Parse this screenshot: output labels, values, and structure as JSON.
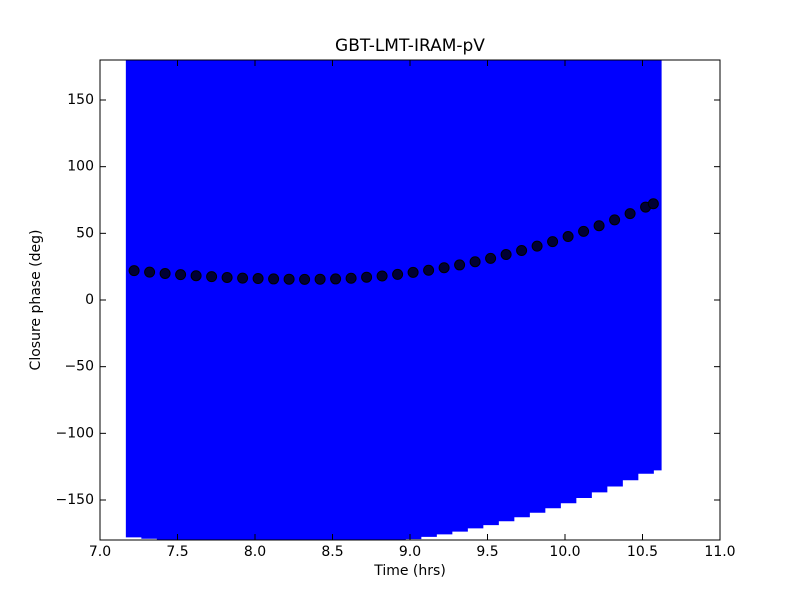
{
  "chart_data": {
    "type": "errorbar",
    "title": "GBT-LMT-IRAM-pV",
    "xlabel": "Time (hrs)",
    "ylabel": "Closure phase (deg)",
    "x": [
      7.22,
      7.32,
      7.42,
      7.52,
      7.62,
      7.72,
      7.82,
      7.92,
      8.02,
      8.12,
      8.22,
      8.32,
      8.42,
      8.52,
      8.62,
      8.72,
      8.82,
      8.92,
      9.02,
      9.12,
      9.22,
      9.32,
      9.42,
      9.52,
      9.62,
      9.72,
      9.82,
      9.92,
      10.02,
      10.12,
      10.22,
      10.32,
      10.42,
      10.52,
      10.57
    ],
    "values": [
      22.0,
      20.9,
      19.9,
      19.0,
      18.2,
      17.5,
      16.9,
      16.4,
      16.1,
      15.8,
      15.6,
      15.5,
      15.6,
      15.8,
      16.3,
      17.1,
      18.0,
      19.2,
      20.7,
      22.3,
      24.2,
      26.3,
      28.7,
      31.2,
      34.1,
      37.1,
      40.4,
      43.8,
      47.6,
      51.5,
      55.7,
      60.1,
      64.8,
      69.7,
      72.2
    ],
    "yerr": 200,
    "color": "#0000ff",
    "marker_color": "#000033",
    "xlim": [
      7,
      11
    ],
    "xticks": [
      {
        "value": 7,
        "label": "7.0"
      },
      {
        "value": 7.5,
        "label": "7.5"
      },
      {
        "value": 8,
        "label": "8.0"
      },
      {
        "value": 8.5,
        "label": "8.5"
      },
      {
        "value": 9,
        "label": "9.0"
      },
      {
        "value": 9.5,
        "label": "9.5"
      },
      {
        "value": 10,
        "label": "10.0"
      },
      {
        "value": 10.5,
        "label": "10.5"
      },
      {
        "value": 11,
        "label": "11.0"
      }
    ],
    "ylim": [
      -180,
      180
    ],
    "yticks": [
      {
        "value": -150,
        "label": "−150"
      },
      {
        "value": -100,
        "label": "−100"
      },
      {
        "value": -50,
        "label": "−50"
      },
      0,
      50,
      100,
      150
    ]
  }
}
